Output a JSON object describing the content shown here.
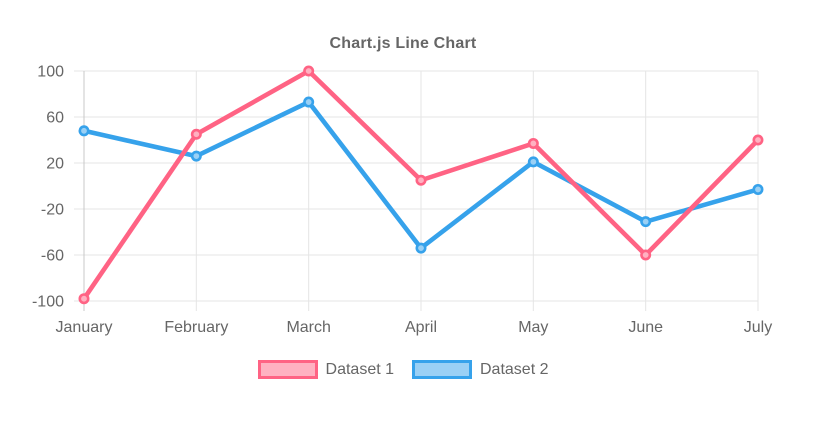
{
  "chart_data": {
    "type": "line",
    "title": "Chart.js Line Chart",
    "categories": [
      "January",
      "February",
      "March",
      "April",
      "May",
      "June",
      "July"
    ],
    "series": [
      {
        "name": "Dataset 1",
        "color": "#ff6384",
        "fill_tint": "#ffb1c1",
        "values": [
          -98,
          45,
          100,
          5,
          37,
          -60,
          40
        ]
      },
      {
        "name": "Dataset 2",
        "color": "#36a2eb",
        "fill_tint": "#9ad0f5",
        "values": [
          48,
          26,
          73,
          -54,
          21,
          -31,
          -3
        ]
      }
    ],
    "xlabel": "",
    "ylabel": "",
    "ylim": [
      -100,
      100
    ],
    "yticks": [
      100,
      60,
      20,
      -20,
      -60,
      -100
    ],
    "grid": true,
    "legend_position": "bottom",
    "axis_text_color": "#666666",
    "grid_color": "#e5e5e5",
    "first_gridline_color": "#c8c8c8",
    "background_color": "#ffffff"
  }
}
